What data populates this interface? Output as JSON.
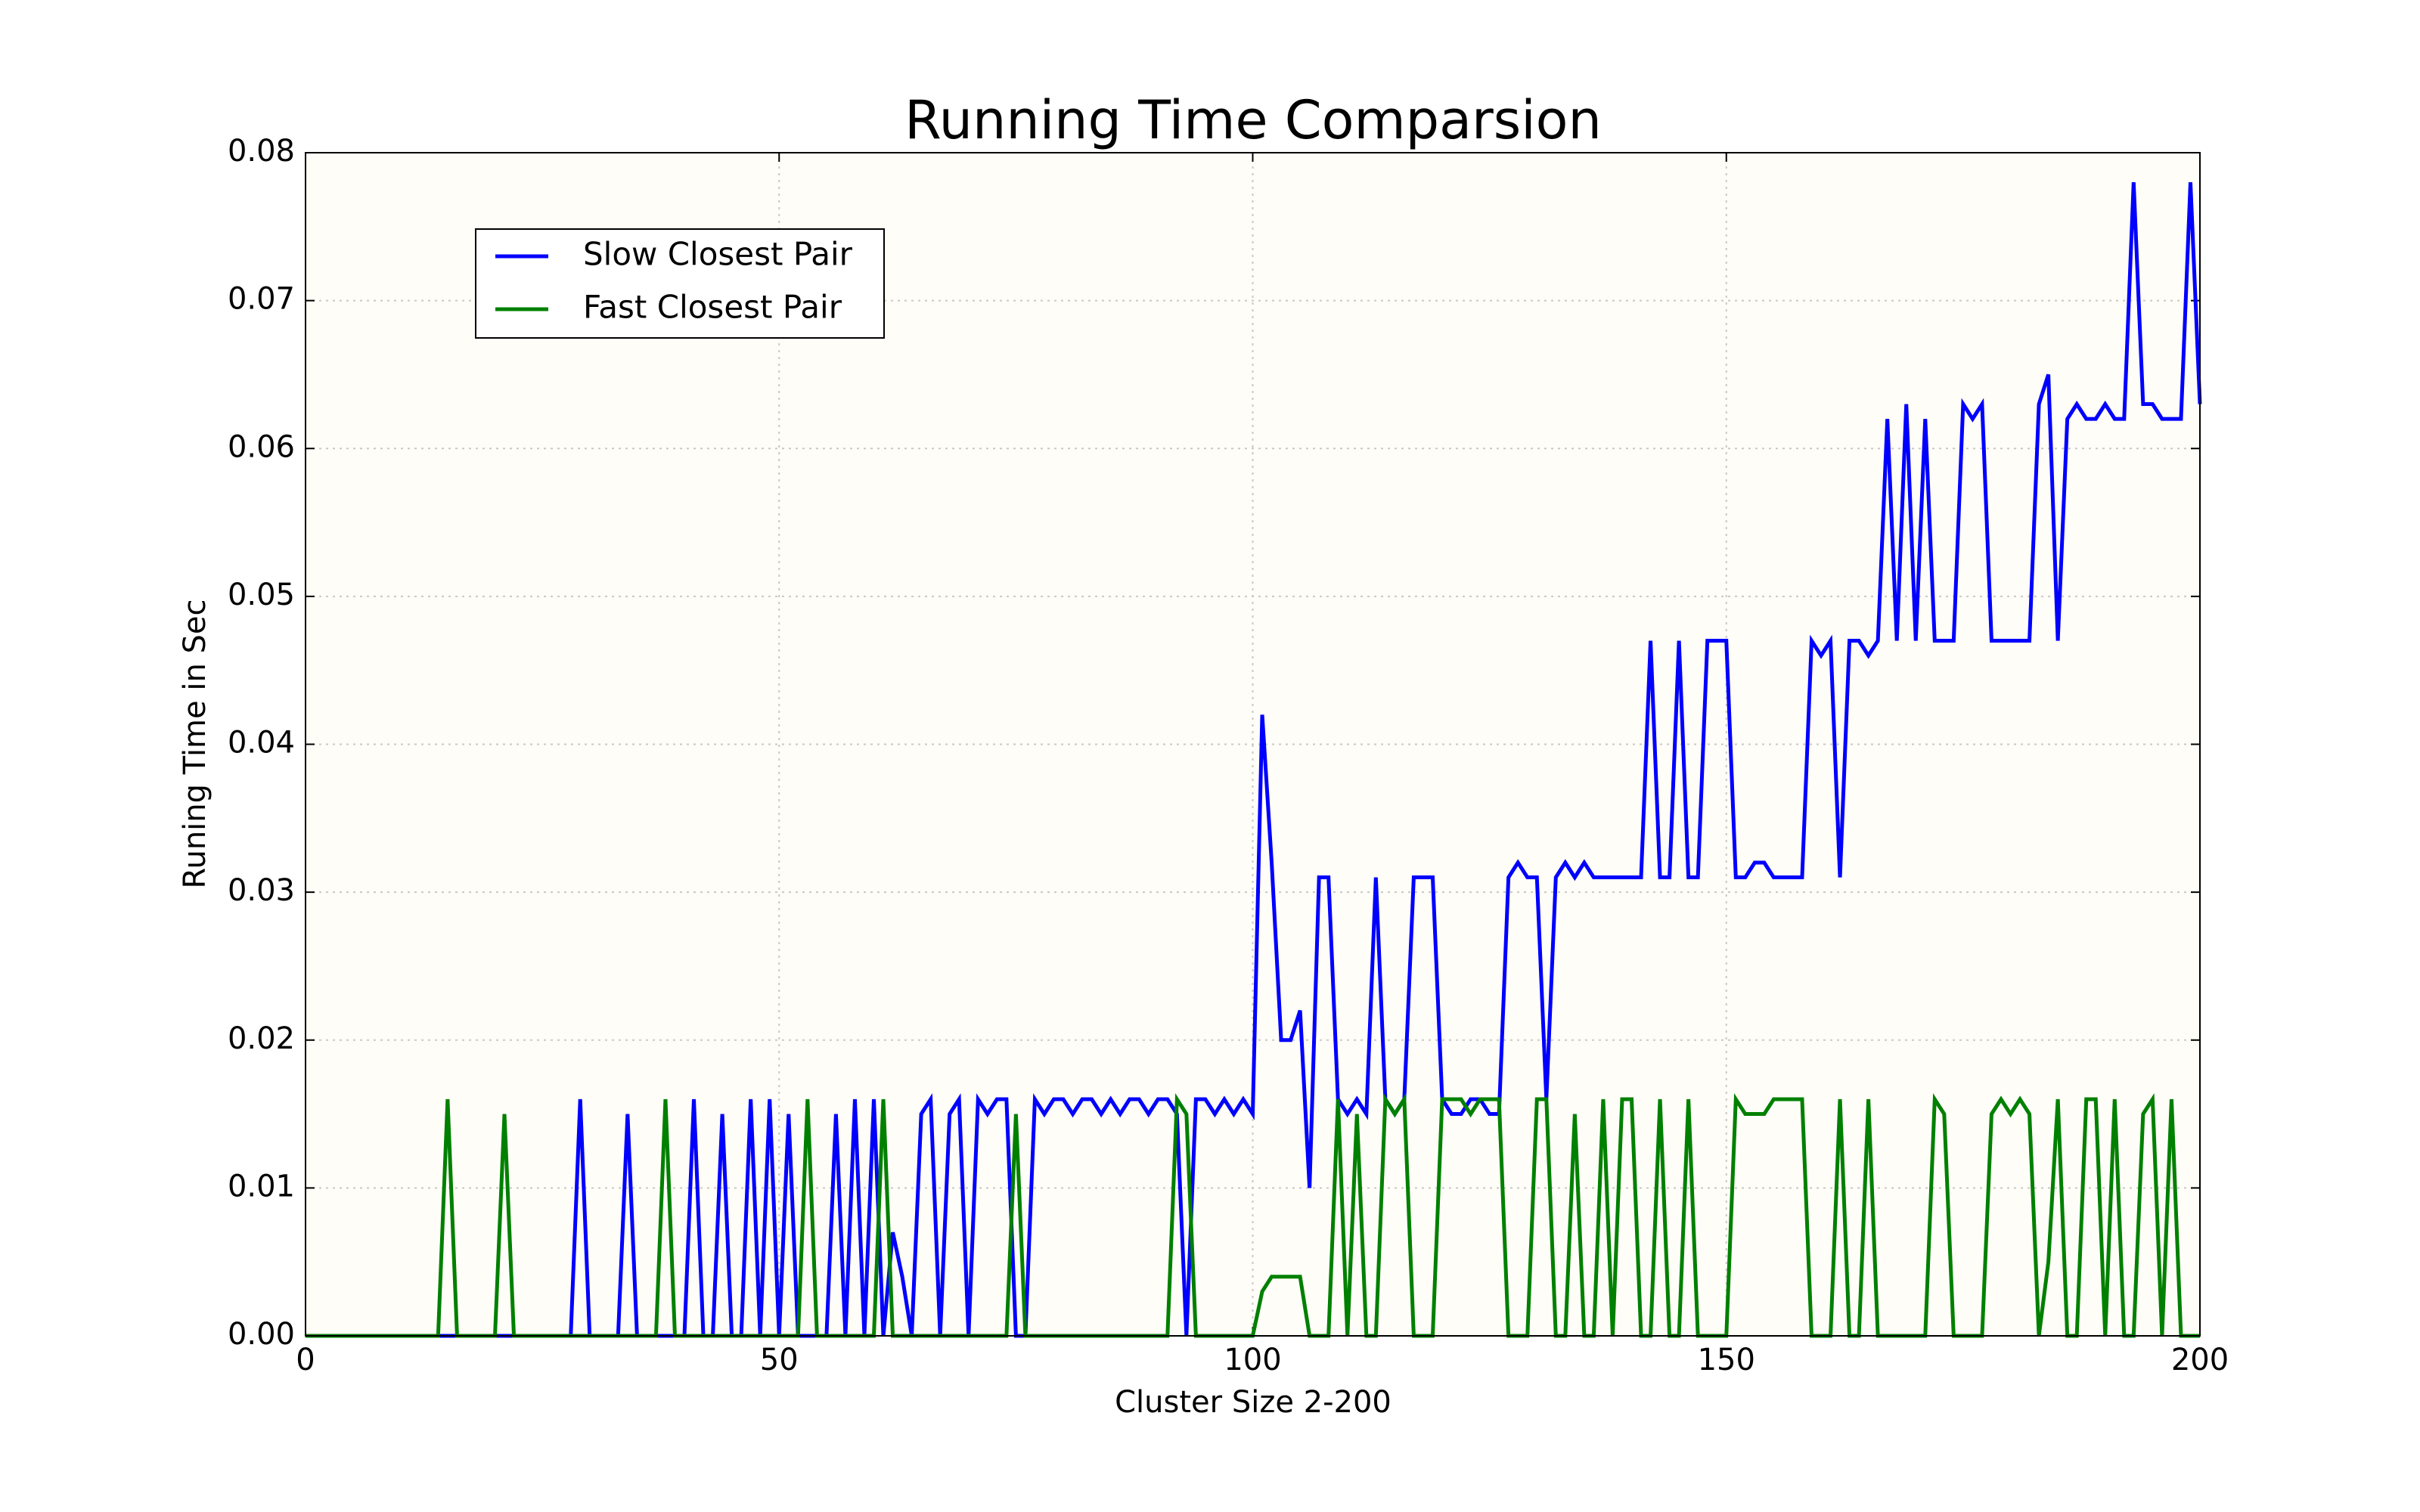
{
  "chart_data": {
    "type": "line",
    "title": "Running Time Comparsion",
    "x_label": "Cluster Size 2-200",
    "y_label": "Runing Time in Sec",
    "xlim": [
      0,
      200
    ],
    "ylim": [
      0,
      0.08
    ],
    "xticks": [
      0,
      50,
      100,
      150,
      200
    ],
    "yticks": [
      {
        "value": 0,
        "label": "0.00"
      },
      0.01,
      0.02,
      0.03,
      0.04,
      0.05,
      0.06,
      0.07,
      0.08
    ],
    "grid": true,
    "legend": "upper left",
    "x": [
      0,
      1,
      2,
      3,
      4,
      5,
      6,
      7,
      8,
      9,
      10,
      11,
      12,
      13,
      14,
      15,
      16,
      17,
      18,
      19,
      20,
      21,
      22,
      23,
      24,
      25,
      26,
      27,
      28,
      29,
      30,
      31,
      32,
      33,
      34,
      35,
      36,
      37,
      38,
      39,
      40,
      41,
      42,
      43,
      44,
      45,
      46,
      47,
      48,
      49,
      50,
      51,
      52,
      53,
      54,
      55,
      56,
      57,
      58,
      59,
      60,
      61,
      62,
      63,
      64,
      65,
      66,
      67,
      68,
      69,
      70,
      71,
      72,
      73,
      74,
      75,
      76,
      77,
      78,
      79,
      80,
      81,
      82,
      83,
      84,
      85,
      86,
      87,
      88,
      89,
      90,
      91,
      92,
      93,
      94,
      95,
      96,
      97,
      98,
      99,
      100,
      101,
      102,
      103,
      104,
      105,
      106,
      107,
      108,
      109,
      110,
      111,
      112,
      113,
      114,
      115,
      116,
      117,
      118,
      119,
      120,
      121,
      122,
      123,
      124,
      125,
      126,
      127,
      128,
      129,
      130,
      131,
      132,
      133,
      134,
      135,
      136,
      137,
      138,
      139,
      140,
      141,
      142,
      143,
      144,
      145,
      146,
      147,
      148,
      149,
      150,
      151,
      152,
      153,
      154,
      155,
      156,
      157,
      158,
      159,
      160,
      161,
      162,
      163,
      164,
      165,
      166,
      167,
      168,
      169,
      170,
      171,
      172,
      173,
      174,
      175,
      176,
      177,
      178,
      179,
      180,
      181,
      182,
      183,
      184,
      185,
      186,
      187,
      188,
      189,
      190,
      191,
      192,
      193,
      194,
      195,
      196,
      197,
      198,
      199,
      200
    ],
    "series": [
      {
        "name": "Slow Closest Pair",
        "color": "#0000ff",
        "values": [
          0,
          0,
          0,
          0,
          0,
          0,
          0,
          0,
          0,
          0,
          0,
          0,
          0,
          0,
          0,
          0,
          0,
          0,
          0,
          0,
          0,
          0,
          0,
          0,
          0,
          0,
          0,
          0,
          0,
          0.016,
          0,
          0,
          0,
          0,
          0.015,
          0,
          0,
          0,
          0,
          0,
          0,
          0.016,
          0,
          0,
          0.015,
          0,
          0,
          0.016,
          0,
          0.016,
          0,
          0.015,
          0,
          0,
          0,
          0,
          0.015,
          0,
          0.016,
          0,
          0.016,
          0,
          0.007,
          0.004,
          0,
          0.015,
          0.016,
          0,
          0.015,
          0.016,
          0,
          0.016,
          0.015,
          0.016,
          0.016,
          0,
          0,
          0.016,
          0.015,
          0.016,
          0.016,
          0.015,
          0.016,
          0.016,
          0.015,
          0.016,
          0.015,
          0.016,
          0.016,
          0.015,
          0.016,
          0.016,
          0.015,
          0,
          0.016,
          0.016,
          0.015,
          0.016,
          0.015,
          0.016,
          0.015,
          0.042,
          0.032,
          0.02,
          0.02,
          0.022,
          0.01,
          0.031,
          0.031,
          0.016,
          0.015,
          0.016,
          0.015,
          0.031,
          0.016,
          0.015,
          0.016,
          0.031,
          0.031,
          0.031,
          0.016,
          0.015,
          0.015,
          0.016,
          0.016,
          0.015,
          0.015,
          0.031,
          0.032,
          0.031,
          0.031,
          0.016,
          0.031,
          0.032,
          0.031,
          0.032,
          0.031,
          0.031,
          0.031,
          0.031,
          0.031,
          0.031,
          0.047,
          0.031,
          0.031,
          0.047,
          0.031,
          0.031,
          0.047,
          0.047,
          0.047,
          0.031,
          0.031,
          0.032,
          0.032,
          0.031,
          0.031,
          0.031,
          0.031,
          0.047,
          0.046,
          0.047,
          0.031,
          0.047,
          0.047,
          0.046,
          0.047,
          0.062,
          0.047,
          0.063,
          0.047,
          0.062,
          0.047,
          0.047,
          0.047,
          0.063,
          0.062,
          0.063,
          0.047,
          0.047,
          0.047,
          0.047,
          0.047,
          0.063,
          0.065,
          0.047,
          0.062,
          0.063,
          0.062,
          0.062,
          0.063,
          0.062,
          0.062,
          0.078,
          0.063,
          0.063,
          0.062,
          0.062,
          0.062,
          0.078,
          0.063
        ]
      },
      {
        "name": "Fast Closest Pair",
        "color": "#008000",
        "values": [
          0,
          0,
          0,
          0,
          0,
          0,
          0,
          0,
          0,
          0,
          0,
          0,
          0,
          0,
          0,
          0.016,
          0,
          0,
          0,
          0,
          0,
          0.015,
          0,
          0,
          0,
          0,
          0,
          0,
          0,
          0,
          0,
          0,
          0,
          0,
          0,
          0,
          0,
          0,
          0.016,
          0,
          0,
          0,
          0,
          0,
          0,
          0,
          0,
          0,
          0,
          0,
          0,
          0,
          0,
          0.016,
          0,
          0,
          0,
          0,
          0,
          0,
          0,
          0.016,
          0,
          0,
          0,
          0,
          0,
          0,
          0,
          0,
          0,
          0,
          0,
          0,
          0,
          0.015,
          0,
          0,
          0,
          0,
          0,
          0,
          0,
          0,
          0,
          0,
          0,
          0,
          0,
          0,
          0,
          0,
          0.016,
          0.015,
          0,
          0,
          0,
          0,
          0,
          0,
          0,
          0.003,
          0.004,
          0.004,
          0.004,
          0.004,
          0,
          0,
          0,
          0.016,
          0,
          0.015,
          0,
          0,
          0.016,
          0.015,
          0.016,
          0,
          0,
          0,
          0.016,
          0.016,
          0.016,
          0.015,
          0.016,
          0.016,
          0.016,
          0,
          0,
          0,
          0.016,
          0.016,
          0,
          0,
          0.015,
          0,
          0,
          0.016,
          0,
          0.016,
          0.016,
          0,
          0,
          0.016,
          0,
          0,
          0.016,
          0,
          0,
          0,
          0,
          0.016,
          0.015,
          0.015,
          0.015,
          0.016,
          0.016,
          0.016,
          0.016,
          0,
          0,
          0,
          0.016,
          0,
          0,
          0.016,
          0,
          0,
          0,
          0,
          0,
          0,
          0.016,
          0.015,
          0,
          0,
          0,
          0,
          0.015,
          0.016,
          0.015,
          0.016,
          0.015,
          0,
          0.005,
          0.016,
          0,
          0,
          0.016,
          0.016,
          0,
          0.016,
          0,
          0,
          0.015,
          0.016,
          0,
          0.016,
          0,
          0,
          0
        ]
      }
    ]
  }
}
